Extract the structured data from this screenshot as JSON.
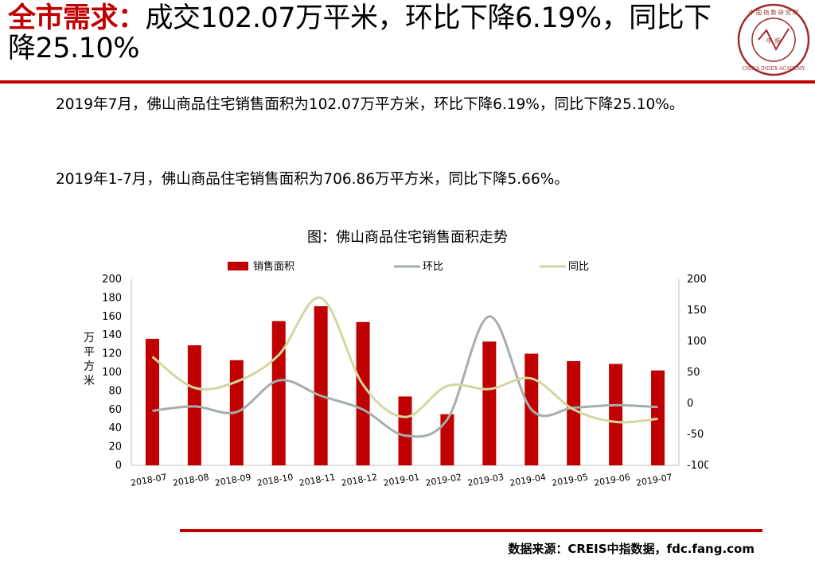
{
  "header": {
    "title_highlight": "全市需求：",
    "title_rest": "成交102.07万平米，环比下降6.19%，同比下降25.10%",
    "logo_text": "中 国 指 数 研 究 院",
    "logo_center": "中 指",
    "logo_english": "CHINA INDEX ACADEMY"
  },
  "body": {
    "para1": "2019年7月，佛山商品住宅销售面积为102.07万平方米，环比下降6.19%，同比下降25.10%。",
    "para2": "2019年1-7月，佛山商品住宅销售面积为706.86万平方米，同比下降5.66%。"
  },
  "chart_title": "图：佛山商品住宅销售面积走势",
  "footer": {
    "source": "数据来源：CREIS中指数据，fdc.fang.com"
  },
  "colors": {
    "accent": "#c00000",
    "bar": "#c00000",
    "mom": "#a6adad",
    "yoy": "#d3d79f"
  },
  "chart_data": {
    "type": "bar",
    "categories": [
      "2018-07",
      "2018-08",
      "2018-09",
      "2018-10",
      "2018-11",
      "2018-12",
      "2019-01",
      "2019-02",
      "2019-03",
      "2019-04",
      "2019-05",
      "2019-06",
      "2019-07"
    ],
    "series": [
      {
        "name": "销售面积",
        "type": "bar",
        "axis": "left",
        "values": [
          136,
          129,
          113,
          155,
          171,
          154,
          74,
          55,
          133,
          120,
          112,
          109,
          102
        ]
      },
      {
        "name": "环比",
        "type": "line",
        "axis": "right",
        "values": [
          -12,
          -5,
          -14,
          37,
          12,
          -10,
          -52,
          -26,
          140,
          -10,
          -7,
          -3,
          -6
        ]
      },
      {
        "name": "同比",
        "type": "line",
        "axis": "right",
        "values": [
          75,
          25,
          35,
          78,
          170,
          30,
          -22,
          28,
          23,
          40,
          -10,
          -30,
          -25
        ]
      }
    ],
    "ylabel": "万平方米",
    "y2label": "%",
    "ylim": [
      0,
      200
    ],
    "y2lim": [
      -100,
      200
    ],
    "yticks": [
      0,
      20,
      40,
      60,
      80,
      100,
      120,
      140,
      160,
      180,
      200
    ],
    "y2ticks": [
      -100,
      -50,
      0,
      50,
      100,
      150,
      200
    ],
    "legend": "top-center",
    "grid": false
  }
}
